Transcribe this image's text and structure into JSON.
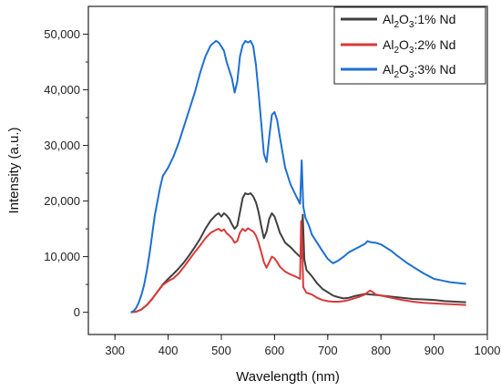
{
  "chart_data": {
    "type": "line",
    "xlabel": "Wavelength (nm)",
    "ylabel": "Intensity (a.u.)",
    "xlim": [
      250,
      1000
    ],
    "ylim": [
      -4000,
      55000
    ],
    "x_ticks": [
      300,
      400,
      500,
      600,
      700,
      800,
      900,
      1000
    ],
    "x_tick_labels": [
      "300",
      "400",
      "500",
      "600",
      "700",
      "800",
      "900",
      "1000"
    ],
    "y_ticks": [
      0,
      10000,
      20000,
      30000,
      40000,
      50000
    ],
    "y_tick_labels": [
      "0",
      "10,000",
      "20,000",
      "30,000",
      "40,000",
      "50,000"
    ],
    "grid": false,
    "legend_position": "top-right",
    "series": [
      {
        "name": "Al2O3:1% Nd",
        "legend_base": "Al",
        "legend_sub1": "2",
        "legend_mid": "O",
        "legend_sub2": "3",
        "legend_rest": ":1% Nd",
        "color": "#404040",
        "points": [
          [
            330,
            0
          ],
          [
            340,
            100
          ],
          [
            350,
            500
          ],
          [
            360,
            1300
          ],
          [
            370,
            2400
          ],
          [
            380,
            3700
          ],
          [
            390,
            5000
          ],
          [
            400,
            6000
          ],
          [
            410,
            6900
          ],
          [
            420,
            7900
          ],
          [
            430,
            9000
          ],
          [
            440,
            10300
          ],
          [
            450,
            11700
          ],
          [
            460,
            13200
          ],
          [
            470,
            15000
          ],
          [
            480,
            16500
          ],
          [
            490,
            17500
          ],
          [
            495,
            17800
          ],
          [
            500,
            17200
          ],
          [
            505,
            17800
          ],
          [
            510,
            17400
          ],
          [
            515,
            16800
          ],
          [
            520,
            15800
          ],
          [
            525,
            15000
          ],
          [
            530,
            15600
          ],
          [
            535,
            18000
          ],
          [
            540,
            20500
          ],
          [
            545,
            21400
          ],
          [
            550,
            21200
          ],
          [
            555,
            21400
          ],
          [
            560,
            20800
          ],
          [
            565,
            19800
          ],
          [
            570,
            18000
          ],
          [
            575,
            15500
          ],
          [
            580,
            13300
          ],
          [
            585,
            14500
          ],
          [
            590,
            16800
          ],
          [
            595,
            17800
          ],
          [
            600,
            17200
          ],
          [
            605,
            15800
          ],
          [
            610,
            14300
          ],
          [
            620,
            12500
          ],
          [
            630,
            11700
          ],
          [
            640,
            10700
          ],
          [
            650,
            9800
          ],
          [
            653,
            17500
          ],
          [
            656,
            9500
          ],
          [
            660,
            7600
          ],
          [
            670,
            6500
          ],
          [
            680,
            5200
          ],
          [
            690,
            4200
          ],
          [
            700,
            3600
          ],
          [
            710,
            3000
          ],
          [
            720,
            2700
          ],
          [
            730,
            2500
          ],
          [
            740,
            2600
          ],
          [
            750,
            2900
          ],
          [
            760,
            3100
          ],
          [
            770,
            3300
          ],
          [
            780,
            3200
          ],
          [
            790,
            3100
          ],
          [
            800,
            3000
          ],
          [
            820,
            2800
          ],
          [
            840,
            2600
          ],
          [
            860,
            2400
          ],
          [
            880,
            2300
          ],
          [
            900,
            2200
          ],
          [
            920,
            2000
          ],
          [
            940,
            1900
          ],
          [
            960,
            1800
          ]
        ]
      },
      {
        "name": "Al2O3:2% Nd",
        "legend_base": "Al",
        "legend_sub1": "2",
        "legend_mid": "O",
        "legend_sub2": "3",
        "legend_rest": ":2% Nd",
        "color": "#d93a3a",
        "points": [
          [
            330,
            0
          ],
          [
            340,
            100
          ],
          [
            350,
            500
          ],
          [
            360,
            1300
          ],
          [
            370,
            2400
          ],
          [
            380,
            3700
          ],
          [
            390,
            4900
          ],
          [
            400,
            5600
          ],
          [
            410,
            6100
          ],
          [
            420,
            7000
          ],
          [
            430,
            8200
          ],
          [
            440,
            9500
          ],
          [
            450,
            10800
          ],
          [
            460,
            12000
          ],
          [
            470,
            13300
          ],
          [
            480,
            14300
          ],
          [
            490,
            14800
          ],
          [
            495,
            15000
          ],
          [
            500,
            14600
          ],
          [
            505,
            14900
          ],
          [
            510,
            14200
          ],
          [
            515,
            13800
          ],
          [
            520,
            13300
          ],
          [
            525,
            12500
          ],
          [
            530,
            12800
          ],
          [
            535,
            14300
          ],
          [
            540,
            15000
          ],
          [
            545,
            14600
          ],
          [
            550,
            15100
          ],
          [
            555,
            14800
          ],
          [
            560,
            14500
          ],
          [
            565,
            13800
          ],
          [
            570,
            12500
          ],
          [
            575,
            10800
          ],
          [
            580,
            9000
          ],
          [
            585,
            8000
          ],
          [
            590,
            9000
          ],
          [
            595,
            10000
          ],
          [
            600,
            9700
          ],
          [
            605,
            9000
          ],
          [
            610,
            8200
          ],
          [
            620,
            7300
          ],
          [
            630,
            6800
          ],
          [
            640,
            6400
          ],
          [
            648,
            6000
          ],
          [
            650,
            16400
          ],
          [
            652,
            12000
          ],
          [
            654,
            4500
          ],
          [
            660,
            3500
          ],
          [
            670,
            3200
          ],
          [
            680,
            2600
          ],
          [
            690,
            2200
          ],
          [
            700,
            2000
          ],
          [
            710,
            1900
          ],
          [
            720,
            1900
          ],
          [
            730,
            2000
          ],
          [
            740,
            2200
          ],
          [
            750,
            2500
          ],
          [
            760,
            2800
          ],
          [
            770,
            3200
          ],
          [
            775,
            3600
          ],
          [
            780,
            3900
          ],
          [
            785,
            3600
          ],
          [
            790,
            3200
          ],
          [
            800,
            3000
          ],
          [
            820,
            2600
          ],
          [
            840,
            2200
          ],
          [
            860,
            1900
          ],
          [
            880,
            1700
          ],
          [
            900,
            1600
          ],
          [
            920,
            1500
          ],
          [
            940,
            1400
          ],
          [
            960,
            1300
          ]
        ]
      },
      {
        "name": "Al2O3:3% Nd",
        "legend_base": "Al",
        "legend_sub1": "2",
        "legend_mid": "O",
        "legend_sub2": "3",
        "legend_rest": ":3% Nd",
        "color": "#1f6fd1",
        "points": [
          [
            330,
            0
          ],
          [
            335,
            200
          ],
          [
            340,
            800
          ],
          [
            345,
            1800
          ],
          [
            350,
            3200
          ],
          [
            355,
            5000
          ],
          [
            360,
            7500
          ],
          [
            365,
            10500
          ],
          [
            370,
            14000
          ],
          [
            375,
            17500
          ],
          [
            380,
            20000
          ],
          [
            385,
            22500
          ],
          [
            390,
            24500
          ],
          [
            400,
            26000
          ],
          [
            410,
            28000
          ],
          [
            420,
            30500
          ],
          [
            430,
            33500
          ],
          [
            440,
            36500
          ],
          [
            450,
            39500
          ],
          [
            460,
            43000
          ],
          [
            470,
            46000
          ],
          [
            480,
            48000
          ],
          [
            490,
            48800
          ],
          [
            495,
            48500
          ],
          [
            500,
            47800
          ],
          [
            505,
            47000
          ],
          [
            510,
            45000
          ],
          [
            515,
            43500
          ],
          [
            520,
            42000
          ],
          [
            525,
            39500
          ],
          [
            530,
            41500
          ],
          [
            535,
            46000
          ],
          [
            540,
            48000
          ],
          [
            545,
            48800
          ],
          [
            550,
            48500
          ],
          [
            555,
            48800
          ],
          [
            560,
            47800
          ],
          [
            565,
            44500
          ],
          [
            570,
            39500
          ],
          [
            575,
            34000
          ],
          [
            580,
            28500
          ],
          [
            585,
            27000
          ],
          [
            590,
            31500
          ],
          [
            595,
            35500
          ],
          [
            600,
            36000
          ],
          [
            605,
            34500
          ],
          [
            610,
            31500
          ],
          [
            620,
            26000
          ],
          [
            630,
            23000
          ],
          [
            640,
            21000
          ],
          [
            648,
            19500
          ],
          [
            651,
            27300
          ],
          [
            654,
            19000
          ],
          [
            658,
            17000
          ],
          [
            665,
            15500
          ],
          [
            670,
            14000
          ],
          [
            680,
            12500
          ],
          [
            690,
            11000
          ],
          [
            700,
            9600
          ],
          [
            710,
            8800
          ],
          [
            720,
            9300
          ],
          [
            730,
            10000
          ],
          [
            740,
            10800
          ],
          [
            750,
            11300
          ],
          [
            760,
            11800
          ],
          [
            770,
            12300
          ],
          [
            775,
            12800
          ],
          [
            780,
            12600
          ],
          [
            790,
            12500
          ],
          [
            800,
            12200
          ],
          [
            810,
            11600
          ],
          [
            820,
            11000
          ],
          [
            830,
            10200
          ],
          [
            840,
            9500
          ],
          [
            850,
            8800
          ],
          [
            860,
            8200
          ],
          [
            870,
            7600
          ],
          [
            880,
            7000
          ],
          [
            890,
            6500
          ],
          [
            900,
            6000
          ],
          [
            910,
            5800
          ],
          [
            920,
            5600
          ],
          [
            930,
            5400
          ],
          [
            940,
            5300
          ],
          [
            950,
            5200
          ],
          [
            960,
            5100
          ]
        ]
      }
    ]
  }
}
